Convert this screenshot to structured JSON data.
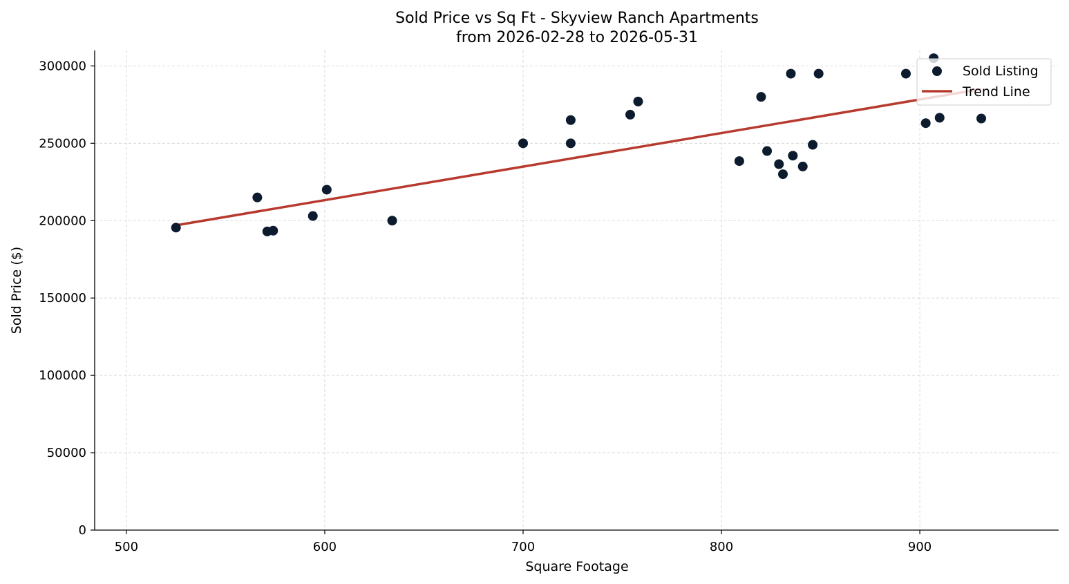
{
  "chart_data": {
    "type": "scatter",
    "title": "Sold Price vs Sq Ft - Skyview Ranch Apartments",
    "subtitle": "from 2026-02-28 to 2026-05-31",
    "xlabel": "Square Footage",
    "ylabel": "Sold Price ($)",
    "xlim": [
      484,
      970
    ],
    "ylim": [
      0,
      310000
    ],
    "x_ticks": [
      500,
      600,
      700,
      800,
      900
    ],
    "y_ticks": [
      0,
      50000,
      100000,
      150000,
      200000,
      250000,
      300000
    ],
    "grid": true,
    "legend_position": "top-right",
    "series": [
      {
        "name": "Sold Listing",
        "kind": "scatter",
        "color": "#0d1b2e",
        "points": [
          [
            525,
            195500
          ],
          [
            566,
            215000
          ],
          [
            571,
            193000
          ],
          [
            574,
            193500
          ],
          [
            594,
            203000
          ],
          [
            601,
            220000
          ],
          [
            634,
            200000
          ],
          [
            700,
            250000
          ],
          [
            724,
            265000
          ],
          [
            724,
            250000
          ],
          [
            754,
            268500
          ],
          [
            758,
            277000
          ],
          [
            809,
            238500
          ],
          [
            820,
            280000
          ],
          [
            823,
            245000
          ],
          [
            829,
            236500
          ],
          [
            831,
            230000
          ],
          [
            835,
            295000
          ],
          [
            836,
            242000
          ],
          [
            841,
            235000
          ],
          [
            846,
            249000
          ],
          [
            849,
            295000
          ],
          [
            893,
            295000
          ],
          [
            903,
            263000
          ],
          [
            907,
            305000
          ],
          [
            910,
            266500
          ],
          [
            931,
            266000
          ]
        ]
      },
      {
        "name": "Trend Line",
        "kind": "line",
        "color": "#b83a2e",
        "points": [
          [
            525,
            197000
          ],
          [
            931,
            285000
          ]
        ]
      }
    ]
  }
}
